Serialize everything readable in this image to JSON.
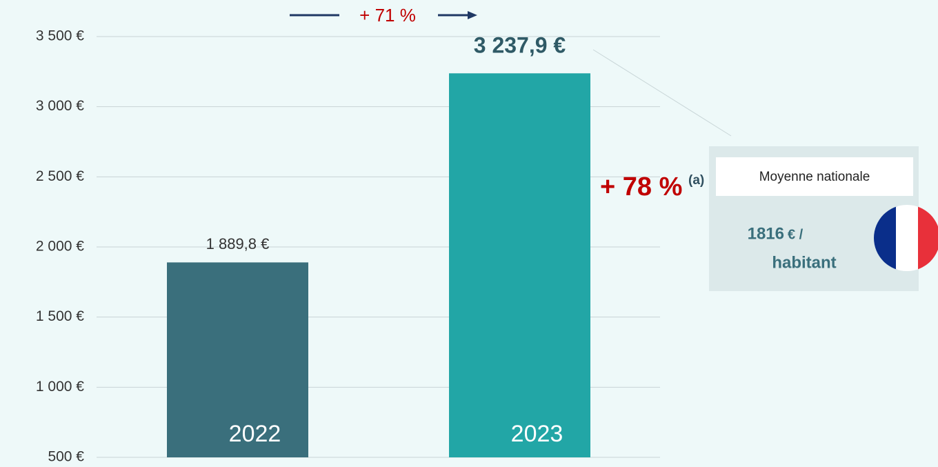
{
  "chart_data": {
    "type": "bar",
    "categories": [
      "2022",
      "2023"
    ],
    "values": [
      1889.8,
      3237.9
    ],
    "value_labels": [
      "1 889,8 €",
      "3 237,9 €"
    ],
    "colors": [
      "#3a6f7c",
      "#22a6a6"
    ],
    "ylim": [
      500,
      3500
    ],
    "yticks": [
      {
        "value": 500,
        "label": "500 €"
      },
      {
        "value": 1000,
        "label": "1 000 €"
      },
      {
        "value": 1500,
        "label": "1 500 €"
      },
      {
        "value": 2000,
        "label": "2 000 €"
      },
      {
        "value": 2500,
        "label": "2 500 €"
      },
      {
        "value": 3000,
        "label": "3 000 €"
      },
      {
        "value": 3500,
        "label": "3 500 €"
      }
    ],
    "grid": true,
    "annotations": {
      "growth_top": "+ 71 %",
      "growth_side": "+ 78 %",
      "growth_side_note": "(a)"
    },
    "national_average": {
      "label": "Moyenne nationale",
      "value": "1816",
      "unit": "€ /",
      "per": "habitant"
    }
  }
}
